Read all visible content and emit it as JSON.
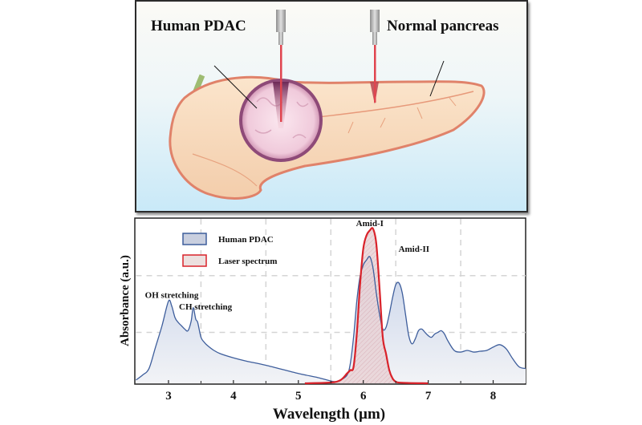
{
  "illustration": {
    "label_tumor": "Human PDAC",
    "label_normal": "Normal pancreas",
    "colors": {
      "background_top": "#fbfaf6",
      "background_bottom": "#c9e9f8",
      "tissue": "#f6d9bd",
      "tissue_edge": "#e58a6a",
      "tumor": "#f1d3e0",
      "tumor_edge": "#8e4a78",
      "laser": "#e0454f",
      "probe": "#a9a9a9"
    }
  },
  "chart_data": {
    "type": "area",
    "title": "",
    "xlabel": "Wavelength (µm)",
    "ylabel": "Absorbance (a.u.)",
    "xlim": [
      2.5,
      8.5
    ],
    "ylim": [
      0,
      1
    ],
    "xticks": [
      3,
      4,
      5,
      6,
      7,
      8
    ],
    "xtick_labels": [
      "3",
      "4",
      "5",
      "6",
      "7",
      "8"
    ],
    "minor_xticks": [
      3.5,
      4.5,
      5.5,
      6.5,
      7.5
    ],
    "yticks_shown": false,
    "grid": {
      "on": true,
      "style": "dashed",
      "x_lines": [
        3.5,
        4.5,
        5.5,
        6.5,
        7.5
      ],
      "y_lines": [
        0.655,
        0.31
      ]
    },
    "legend": {
      "placement": "top-left",
      "entries": [
        {
          "label": "Human PDAC",
          "edge": "#3e5e9c",
          "fill": "#c9cfdf"
        },
        {
          "label": "Laser spectrum",
          "edge": "#d9222a",
          "fill": "#ece0df"
        }
      ]
    },
    "annotations": [
      {
        "text": "OH stretching",
        "x": 3.05,
        "y": 0.52
      },
      {
        "text": "CH stretching",
        "x": 3.57,
        "y": 0.45
      },
      {
        "text": "Amid-I",
        "x": 6.1,
        "y": 0.955
      },
      {
        "text": "Amid-II",
        "x": 6.78,
        "y": 0.8
      }
    ],
    "series": [
      {
        "name": "Human PDAC",
        "color": "#3e5e9c",
        "fill_top": "#c7d3ea",
        "fill_bottom": "#f2f3f6",
        "x": [
          2.5,
          2.6,
          2.7,
          2.8,
          2.9,
          3.0,
          3.05,
          3.1,
          3.15,
          3.2,
          3.25,
          3.3,
          3.35,
          3.38,
          3.42,
          3.45,
          3.5,
          3.55,
          3.6,
          3.7,
          3.8,
          4.0,
          4.2,
          4.5,
          5.0,
          5.3,
          5.55,
          5.65,
          5.75,
          5.8,
          5.85,
          5.9,
          5.95,
          6.0,
          6.05,
          6.1,
          6.15,
          6.2,
          6.25,
          6.3,
          6.35,
          6.4,
          6.45,
          6.5,
          6.55,
          6.6,
          6.65,
          6.7,
          6.75,
          6.8,
          6.85,
          6.9,
          6.95,
          7.0,
          7.05,
          7.1,
          7.15,
          7.2,
          7.25,
          7.3,
          7.4,
          7.5,
          7.6,
          7.7,
          7.8,
          7.9,
          8.0,
          8.1,
          8.2,
          8.3,
          8.4,
          8.5
        ],
        "y": [
          0.02,
          0.05,
          0.09,
          0.22,
          0.35,
          0.5,
          0.47,
          0.4,
          0.37,
          0.35,
          0.33,
          0.32,
          0.38,
          0.46,
          0.39,
          0.37,
          0.28,
          0.25,
          0.23,
          0.2,
          0.18,
          0.155,
          0.135,
          0.11,
          0.06,
          0.035,
          0.01,
          0.02,
          0.05,
          0.12,
          0.28,
          0.5,
          0.65,
          0.72,
          0.75,
          0.77,
          0.7,
          0.55,
          0.42,
          0.33,
          0.34,
          0.42,
          0.52,
          0.6,
          0.61,
          0.55,
          0.42,
          0.29,
          0.24,
          0.27,
          0.32,
          0.33,
          0.31,
          0.29,
          0.28,
          0.3,
          0.31,
          0.32,
          0.3,
          0.26,
          0.2,
          0.19,
          0.2,
          0.19,
          0.195,
          0.2,
          0.22,
          0.235,
          0.21,
          0.15,
          0.1,
          0.09
        ]
      },
      {
        "name": "Laser spectrum",
        "color": "#d9222a",
        "fill": "#ebc9c9",
        "x": [
          5.1,
          5.5,
          5.65,
          5.75,
          5.8,
          5.85,
          5.9,
          5.95,
          6.0,
          6.05,
          6.1,
          6.15,
          6.2,
          6.25,
          6.3,
          6.35,
          6.4,
          6.45,
          6.5,
          6.6,
          7.0
        ],
        "y": [
          0.0,
          0.005,
          0.02,
          0.06,
          0.08,
          0.1,
          0.3,
          0.6,
          0.82,
          0.9,
          0.93,
          0.94,
          0.85,
          0.58,
          0.28,
          0.18,
          0.08,
          0.03,
          0.01,
          0.003,
          0.0
        ]
      }
    ]
  }
}
